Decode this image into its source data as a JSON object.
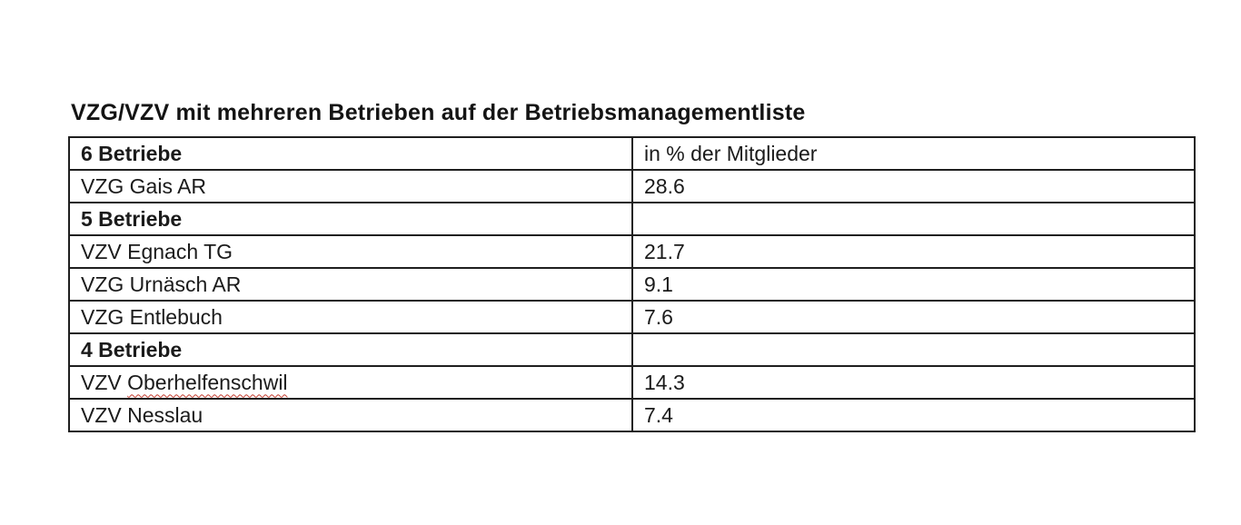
{
  "document": {
    "title": "VZG/VZV mit mehreren Betrieben auf der Betriebsmanagementliste"
  },
  "table": {
    "spellcheck_underline_color": "#c23b2e",
    "border_color": "#1f1f1f",
    "rows": [
      {
        "label": "6 Betriebe",
        "value": "in % der Mitglieder",
        "group_header": true
      },
      {
        "label": "VZG Gais AR",
        "value": "28.6",
        "group_header": false
      },
      {
        "label": "5 Betriebe",
        "value": "",
        "group_header": true
      },
      {
        "label": "VZV Egnach TG",
        "value": "21.7",
        "group_header": false
      },
      {
        "label": "VZG Urnäsch AR",
        "value": "9.1",
        "group_header": false
      },
      {
        "label": "VZG Entlebuch",
        "value": "7.6",
        "group_header": false
      },
      {
        "label": "4 Betriebe",
        "value": "",
        "group_header": true
      },
      {
        "label_prefix": "VZV ",
        "misspelled_word": "Oberhelfenschwil",
        "value": "14.3",
        "group_header": false
      },
      {
        "label": "VZV Nesslau",
        "value": "7.4",
        "group_header": false
      }
    ]
  }
}
